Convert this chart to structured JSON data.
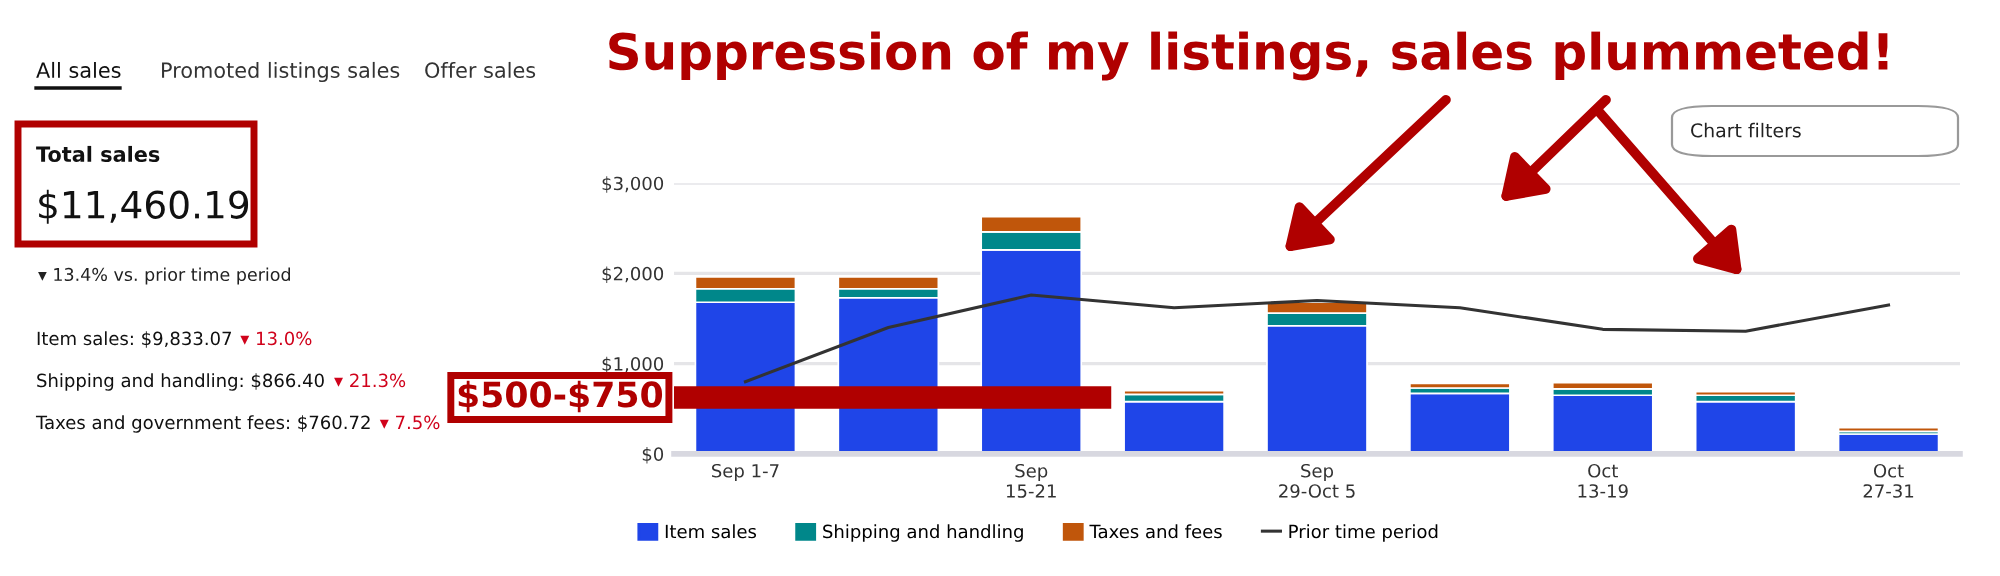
{
  "chart_data": {
    "type": "bar",
    "stacked": true,
    "title": "Suppression of my listings, sales plummeted!",
    "categories": [
      "Sep 1-7",
      null,
      "Sep\n15-21",
      null,
      "Sep\n29-Oct 5",
      null,
      "Oct\n13-19",
      null,
      "Oct\n27-31"
    ],
    "series": [
      {
        "name": "Item sales",
        "color": "#1f45e8",
        "values": [
          1680,
          1730,
          2260,
          580,
          1420,
          670,
          650,
          580,
          220
        ]
      },
      {
        "name": "Shipping and handling",
        "color": "#00878a",
        "values": [
          150,
          100,
          200,
          80,
          140,
          60,
          70,
          70,
          30
        ]
      },
      {
        "name": "Taxes and fees",
        "color": "#c0560b",
        "values": [
          130,
          130,
          170,
          40,
          120,
          50,
          70,
          40,
          40
        ]
      },
      {
        "name": "Prior time period",
        "type": "line",
        "color": "#333333",
        "values": [
          800,
          1400,
          1760,
          1620,
          1700,
          1620,
          1380,
          1360,
          1650
        ]
      }
    ],
    "ylim": [
      0,
      3000
    ],
    "yticks": [
      {
        "value": 0,
        "label": "$0"
      },
      {
        "value": 1000,
        "label": "$1,000"
      },
      {
        "value": 2000,
        "label": "$2,000"
      },
      {
        "value": 3000,
        "label": "$3,000"
      }
    ],
    "grid": "y",
    "legend": "bottom",
    "marker": "none",
    "bands": [
      {
        "axis": "y",
        "from": 500,
        "to": 750,
        "label": "$500-$750",
        "color": "#b00000"
      }
    ],
    "annotations": [
      "All sales",
      "Promoted listings sales",
      "Offer sales",
      "Total sales",
      "$11,460.19",
      "▾ 13.4% vs. prior time period",
      "Item sales: $9,833.07",
      "▾ 13.0%",
      "Shipping and handling: $866.40",
      "▾ 21.3%",
      "Taxes and government fees: $760.72",
      "▾ 7.5%",
      "Chart filters"
    ]
  }
}
